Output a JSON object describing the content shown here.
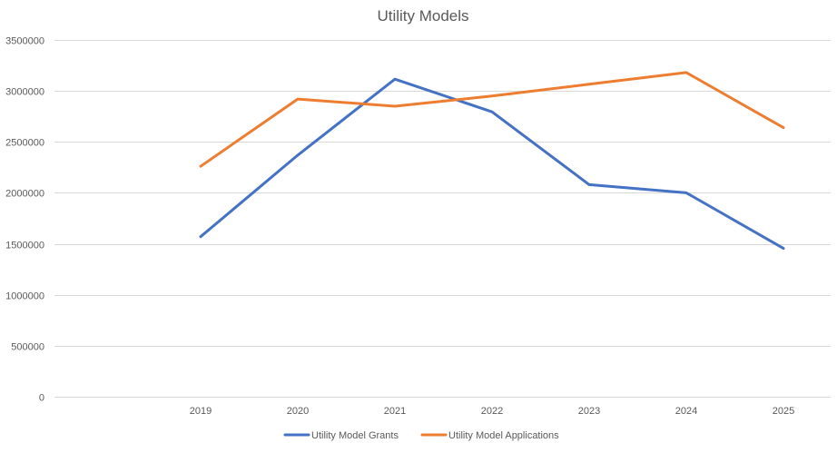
{
  "chart_data": {
    "type": "line",
    "title": "Utility Models",
    "xlabel": "",
    "ylabel": "",
    "categories": [
      "2019",
      "2020",
      "2021",
      "2022",
      "2023",
      "2024",
      "2025"
    ],
    "ylim": [
      0,
      3500000
    ],
    "yticks": [
      "0",
      "500000",
      "1000000",
      "1500000",
      "2000000",
      "2500000",
      "3000000",
      "3500000"
    ],
    "grid": true,
    "legend_position": "bottom",
    "series": [
      {
        "name": "Utility Model Grants",
        "color": "#4472c4",
        "values": [
          1570000,
          2370000,
          3115000,
          2795000,
          2080000,
          2000000,
          1455000
        ]
      },
      {
        "name": "Utility Model Applications",
        "color": "#ed7d31",
        "values": [
          2260000,
          2920000,
          2850000,
          2950000,
          3065000,
          3180000,
          2640000
        ]
      }
    ]
  }
}
